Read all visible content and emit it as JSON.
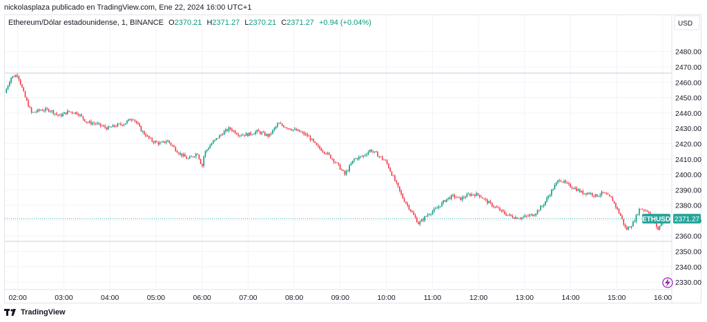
{
  "header": {
    "published_by": "nickolasplaza publicado en TradingView.com, Ene 22, 2024 16:00 UTC+1"
  },
  "legend": {
    "symbol": "Ethereum/Dólar estadounidense, 1, BINANCE",
    "open_label": "O",
    "open": "2370.21",
    "high_label": "H",
    "high": "2371.27",
    "low_label": "L",
    "low": "2370.21",
    "close_label": "C",
    "close": "2371.27",
    "change": "+0.94 (+0.04%)"
  },
  "price_axis": {
    "currency": "USD"
  },
  "price_tag": {
    "ticker": "ETHUSD",
    "price": "2371.27"
  },
  "footer": {
    "brand": "TradingView"
  },
  "colors": {
    "up": "#089981",
    "down": "#f23645",
    "tag": "#26a69a",
    "grid": "#f0f3fa",
    "guide": "#c9ccd6"
  },
  "icons": {
    "lightning": "lightning-icon",
    "logo": "tradingview-logo-icon"
  },
  "chart_data": {
    "type": "line",
    "description_of_series": "ETH/USD 1-minute candles",
    "ylim": [
      2326,
      2492
    ],
    "y_ticks": [
      2330,
      2340,
      2350,
      2360,
      2370,
      2380,
      2390,
      2400,
      2410,
      2420,
      2430,
      2440,
      2450,
      2460,
      2470,
      2480
    ],
    "y_tick_labels": [
      "2330.00",
      "2340.00",
      "2350.00",
      "2360.00",
      "2370.00",
      "2380.00",
      "2390.00",
      "2400.00",
      "2410.00",
      "2420.00",
      "2430.00",
      "2440.00",
      "2450.00",
      "2460.00",
      "2470.00",
      "2480.00"
    ],
    "x_labels": [
      "02:00",
      "03:00",
      "04:00",
      "05:00",
      "06:00",
      "07:00",
      "08:00",
      "09:00",
      "10:00",
      "11:00",
      "12:00",
      "13:00",
      "14:00",
      "15:00",
      "16:00"
    ],
    "x_label_hours": [
      2,
      3,
      4,
      5,
      6,
      7,
      8,
      9,
      10,
      11,
      12,
      13,
      14,
      15,
      16
    ],
    "x_start_hour": 1.72,
    "x_end_hour": 16.0,
    "x": [
      1.72,
      1.85,
      2.0,
      2.15,
      2.3,
      2.5,
      2.7,
      2.9,
      3.1,
      3.3,
      3.5,
      3.7,
      3.95,
      4.15,
      4.3,
      4.5,
      4.7,
      4.9,
      5.1,
      5.25,
      5.5,
      5.7,
      5.9,
      6.0,
      6.05,
      6.2,
      6.45,
      6.6,
      6.8,
      7.0,
      7.2,
      7.45,
      7.65,
      7.9,
      8.1,
      8.3,
      8.5,
      8.7,
      8.9,
      9.1,
      9.3,
      9.5,
      9.65,
      9.8,
      10.0,
      10.2,
      10.35,
      10.5,
      10.7,
      10.9,
      11.1,
      11.3,
      11.45,
      11.6,
      11.8,
      12.0,
      12.2,
      12.4,
      12.6,
      12.8,
      12.95,
      13.2,
      13.4,
      13.6,
      13.75,
      13.95,
      14.1,
      14.25,
      14.4,
      14.55,
      14.7,
      14.9,
      15.1,
      15.2,
      15.35,
      15.5,
      15.7,
      15.8,
      15.9,
      16.0
    ],
    "y": [
      2453,
      2463,
      2465,
      2451,
      2440,
      2442,
      2442,
      2438,
      2441,
      2440,
      2434,
      2433,
      2430,
      2432,
      2433,
      2437,
      2428,
      2422,
      2420,
      2422,
      2414,
      2410,
      2414,
      2405,
      2414,
      2420,
      2427,
      2430,
      2426,
      2426,
      2428,
      2425,
      2433,
      2430,
      2428,
      2425,
      2418,
      2414,
      2408,
      2400,
      2410,
      2412,
      2416,
      2413,
      2408,
      2395,
      2385,
      2378,
      2368,
      2374,
      2378,
      2384,
      2386,
      2384,
      2387,
      2387,
      2382,
      2378,
      2374,
      2372,
      2372,
      2374,
      2380,
      2390,
      2397,
      2393,
      2391,
      2388,
      2388,
      2386,
      2388,
      2384,
      2372,
      2364,
      2368,
      2378,
      2376,
      2370,
      2364,
      2371.27
    ],
    "reference_lines": [
      2466,
      2356.5
    ],
    "last_price": 2371.27
  }
}
